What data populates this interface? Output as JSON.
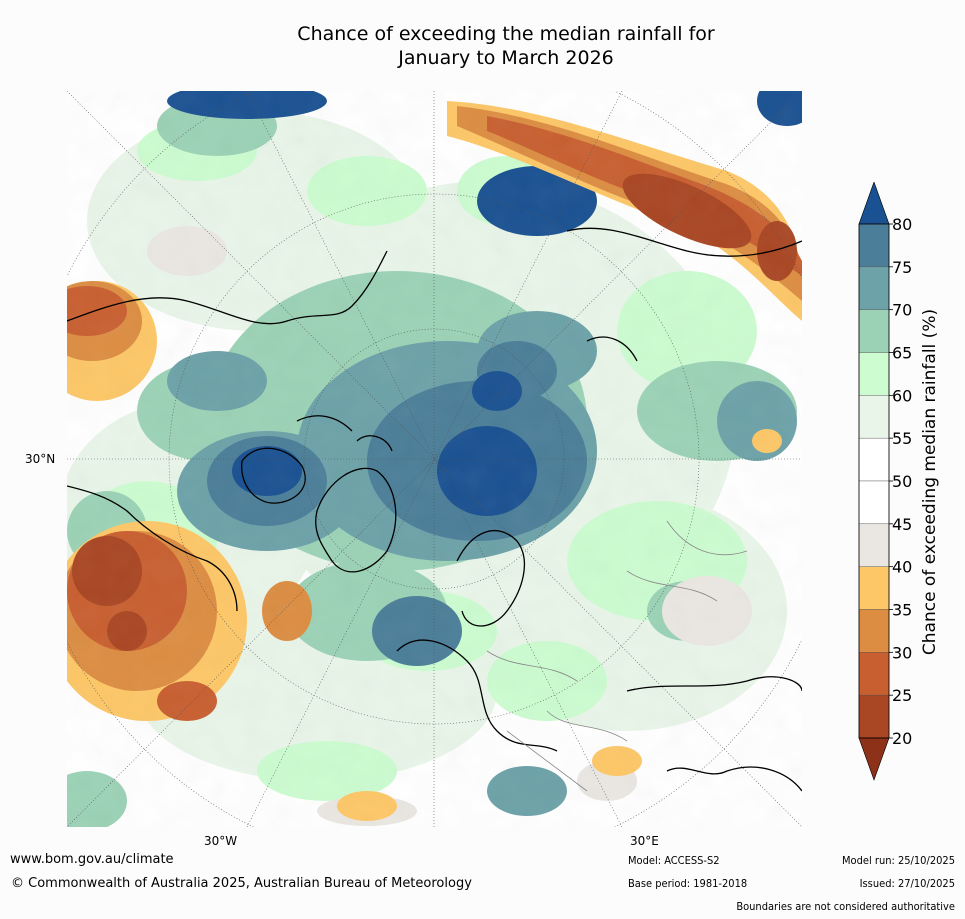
{
  "title": {
    "line1": "Chance of exceeding the median rainfall for",
    "line2": "January to March 2026"
  },
  "map": {
    "projection": "north-polar-stereographic",
    "lat_label": "30°N",
    "lon_labels": [
      "30°W",
      "30°E"
    ]
  },
  "colorbar": {
    "label": "Chance of exceeding median rainfall (%)",
    "ticks": [
      "20",
      "25",
      "30",
      "35",
      "40",
      "45",
      "50",
      "55",
      "60",
      "65",
      "70",
      "75",
      "80"
    ],
    "bins": [
      {
        "range": "<20",
        "color": "#8e3119"
      },
      {
        "range": "20-25",
        "color": "#a94623"
      },
      {
        "range": "25-30",
        "color": "#c85f30"
      },
      {
        "range": "30-35",
        "color": "#dc8d42"
      },
      {
        "range": "35-40",
        "color": "#fdc767"
      },
      {
        "range": "40-45",
        "color": "#eae7e2"
      },
      {
        "range": "45-50",
        "color": "#ffffff"
      },
      {
        "range": "50-55",
        "color": "#ffffff"
      },
      {
        "range": "55-60",
        "color": "#e9f5e9"
      },
      {
        "range": "60-65",
        "color": "#ccfcd0"
      },
      {
        "range": "65-70",
        "color": "#9bd2b6"
      },
      {
        "range": "70-75",
        "color": "#6ca2a8"
      },
      {
        "range": "75-80",
        "color": "#4b7e98"
      },
      {
        "range": ">80",
        "color": "#1a5192"
      }
    ]
  },
  "footer": {
    "url": "www.bom.gov.au/climate",
    "copyright": "© Commonwealth of Australia 2025, Australian Bureau of Meteorology",
    "model": "Model: ACCESS-S2",
    "base_period": "Base period: 1981-2018",
    "model_run": "Model run: 25/10/2025",
    "issued": "Issued: 27/10/2025",
    "boundaries": "Boundaries are not considered authoritative"
  }
}
